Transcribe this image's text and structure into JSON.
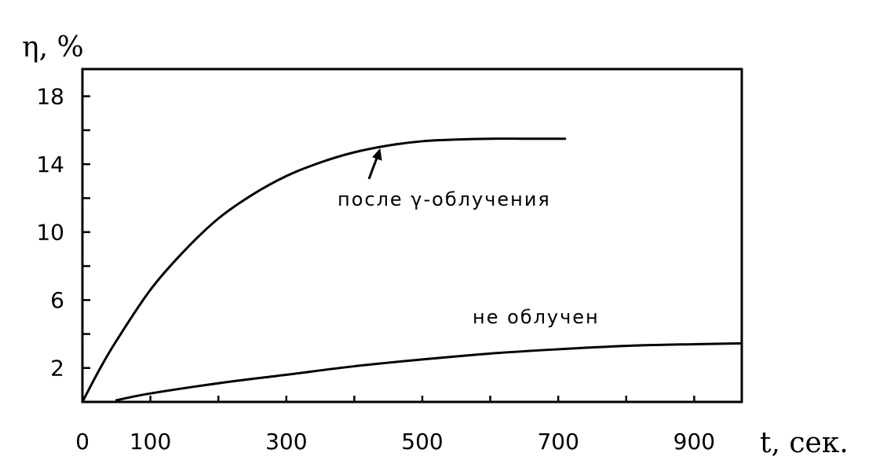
{
  "chart_data": {
    "type": "line",
    "title": "",
    "xlabel": "t, сек.",
    "ylabel": "η, %",
    "xlim": [
      0,
      970
    ],
    "ylim": [
      0,
      19.6
    ],
    "grid": false,
    "x_ticks": [
      0,
      100,
      300,
      500,
      700,
      900
    ],
    "x_minor_ticks": [
      200,
      400,
      600,
      800
    ],
    "y_ticks": [
      2,
      6,
      10,
      14,
      18
    ],
    "y_minor_ticks": [
      4,
      8,
      12,
      16
    ],
    "series": [
      {
        "name": "после γ-облучения",
        "x": [
          0,
          25,
          50,
          100,
          150,
          200,
          250,
          300,
          350,
          400,
          450,
          500,
          550,
          600,
          650,
          710
        ],
        "y": [
          0,
          1.9,
          3.6,
          6.6,
          8.9,
          10.8,
          12.2,
          13.3,
          14.1,
          14.7,
          15.1,
          15.35,
          15.45,
          15.5,
          15.5,
          15.5
        ]
      },
      {
        "name": "не облучен",
        "x": [
          50,
          100,
          200,
          300,
          400,
          500,
          600,
          700,
          800,
          900,
          970
        ],
        "y": [
          0.1,
          0.5,
          1.1,
          1.6,
          2.1,
          2.5,
          2.85,
          3.1,
          3.3,
          3.4,
          3.45
        ]
      }
    ],
    "annotations": [
      {
        "text": "после γ-облучения",
        "series": 0
      },
      {
        "text": "не облучен",
        "series": 1
      }
    ]
  }
}
